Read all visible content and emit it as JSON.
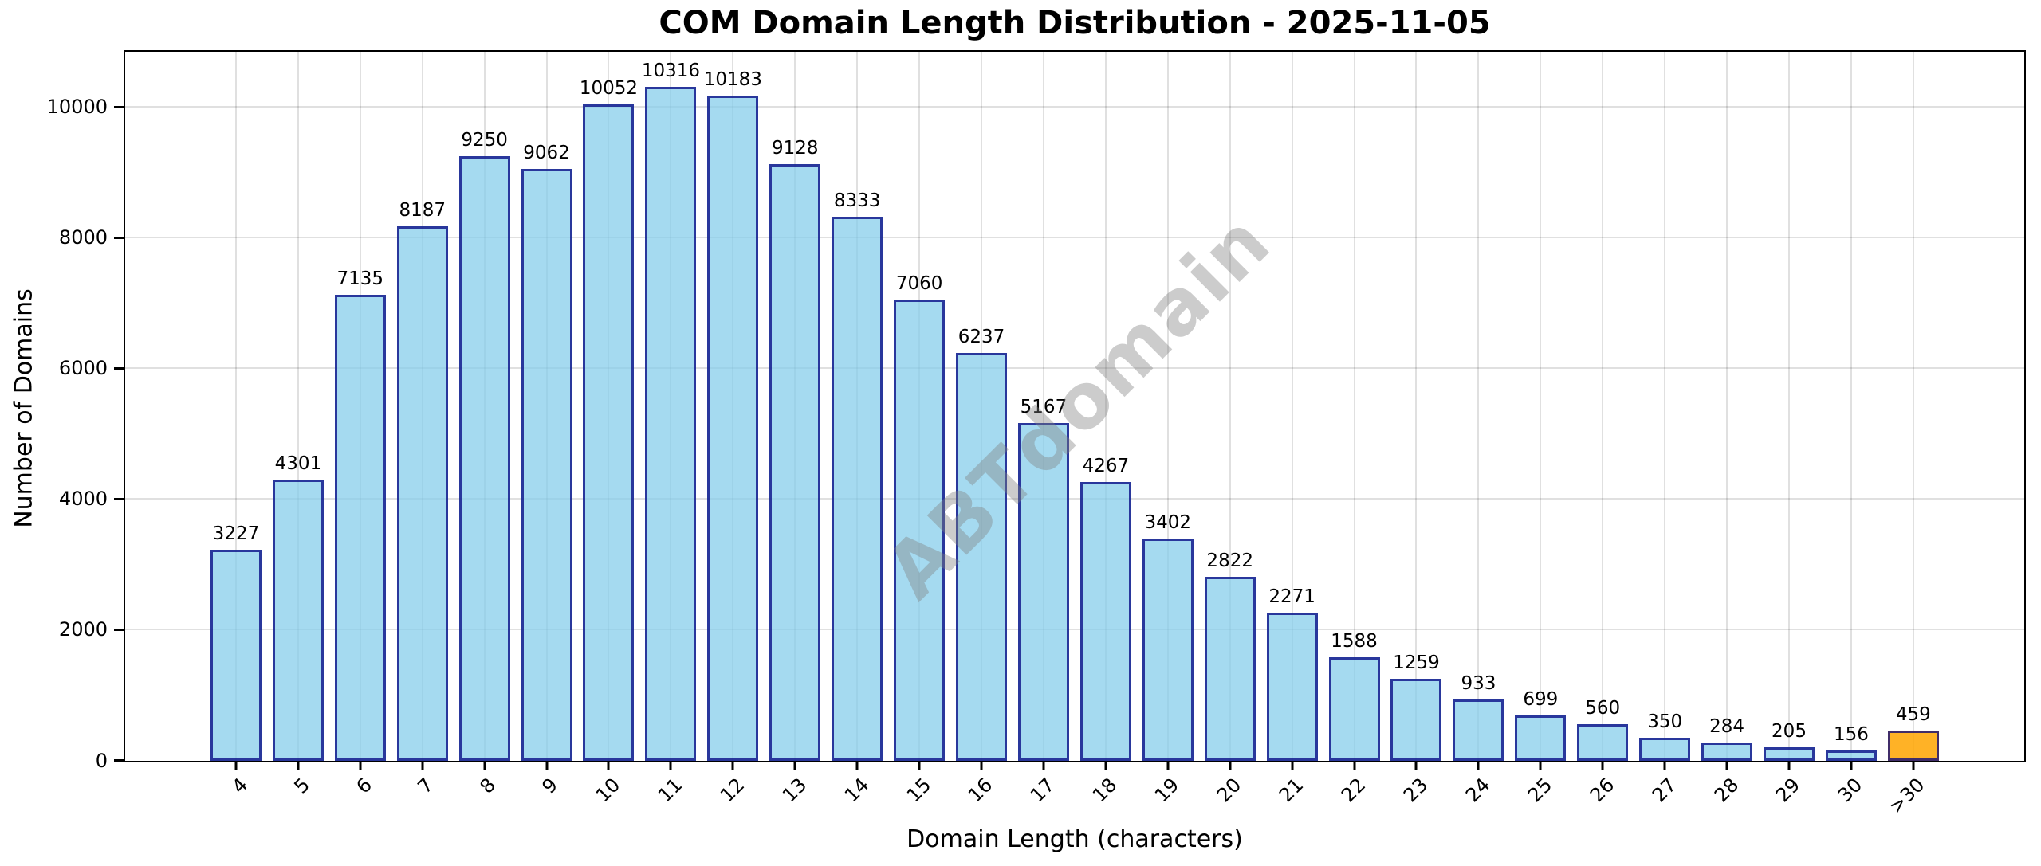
{
  "title": "COM Domain Length Distribution - 2025-11-05",
  "watermark_text": "ABTdomain",
  "chart_data": {
    "type": "bar",
    "title": "COM Domain Length Distribution - 2025-11-05",
    "xlabel": "Domain Length (characters)",
    "ylabel": "Number of Domains",
    "categories": [
      "4",
      "5",
      "6",
      "7",
      "8",
      "9",
      "10",
      "11",
      "12",
      "13",
      "14",
      "15",
      "16",
      "17",
      "18",
      "19",
      "20",
      "21",
      "22",
      "23",
      "24",
      "25",
      "26",
      "27",
      "28",
      "29",
      "30",
      ">30"
    ],
    "values": [
      3227,
      4301,
      7135,
      8187,
      9250,
      9062,
      10052,
      10316,
      10183,
      9128,
      8333,
      7060,
      6237,
      5167,
      4267,
      3402,
      2822,
      2271,
      1588,
      1259,
      933,
      699,
      560,
      350,
      284,
      205,
      156,
      459
    ],
    "bar_value_labels": [
      "3227",
      "4301",
      "7135",
      "8187",
      "9250",
      "9062",
      "10052",
      "10316",
      "10183",
      "9128",
      "8333",
      "7060",
      "6237",
      "5167",
      "4267",
      "3402",
      "2822",
      "2271",
      "1588",
      "1259",
      "933",
      "699",
      "560",
      "350",
      "284",
      "205",
      "156",
      "459"
    ],
    "yticks": [
      0,
      2000,
      4000,
      6000,
      8000,
      10000
    ],
    "ylim": [
      0,
      10840
    ],
    "grid": true,
    "legend_position": "none",
    "colors": {
      "bar_fill": "rgba(135,206,235,0.75)",
      "bar_edge": "rgba(0,0,128,0.75)",
      "highlight_fill": "rgba(255,165,0,0.85)",
      "highlight_index": 27,
      "grid_color": "rgba(0,0,0,0.12)",
      "axis_color": "#000000",
      "watermark_color": "rgba(128,128,128,0.40)"
    }
  }
}
